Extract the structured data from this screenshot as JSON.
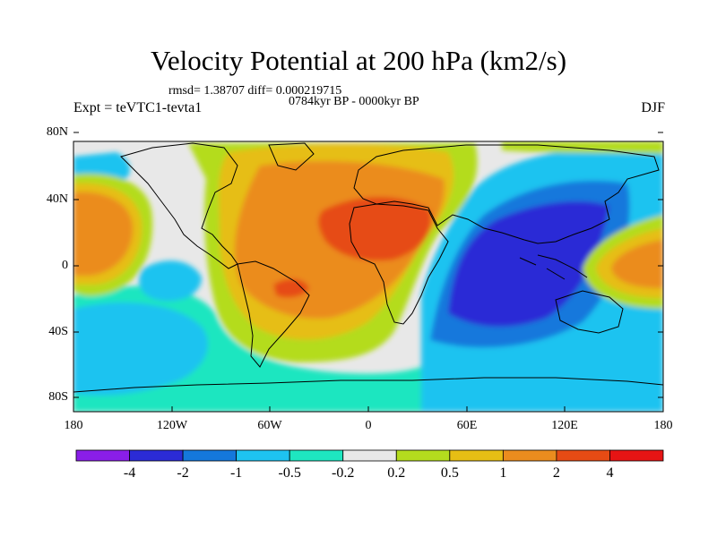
{
  "title": "Velocity Potential at 200 hPa (km2/s)",
  "stats": "rmsd= 1.38707 diff= 0.000219715",
  "period": "0784kyr BP - 0000kyr BP",
  "experiment": "Expt = teVTC1-tevta1",
  "season": "DJF",
  "axes": {
    "lat_ticks": [
      "80N",
      "40N",
      "0",
      "40S",
      "80S"
    ],
    "lon_ticks": [
      "180",
      "120W",
      "60W",
      "0",
      "60E",
      "120E",
      "180"
    ]
  },
  "colorbar": {
    "levels": [
      "-4",
      "-2",
      "-1",
      "-0.5",
      "-0.2",
      "0.2",
      "0.5",
      "1",
      "2",
      "4"
    ],
    "colors": [
      "#8a1ee8",
      "#2b2bd6",
      "#1478dc",
      "#1ec3f0",
      "#1ee6c0",
      "#e8e8e8",
      "#b4dc1e",
      "#e6be14",
      "#eb8c1e",
      "#e64b14",
      "#e61414"
    ]
  }
}
